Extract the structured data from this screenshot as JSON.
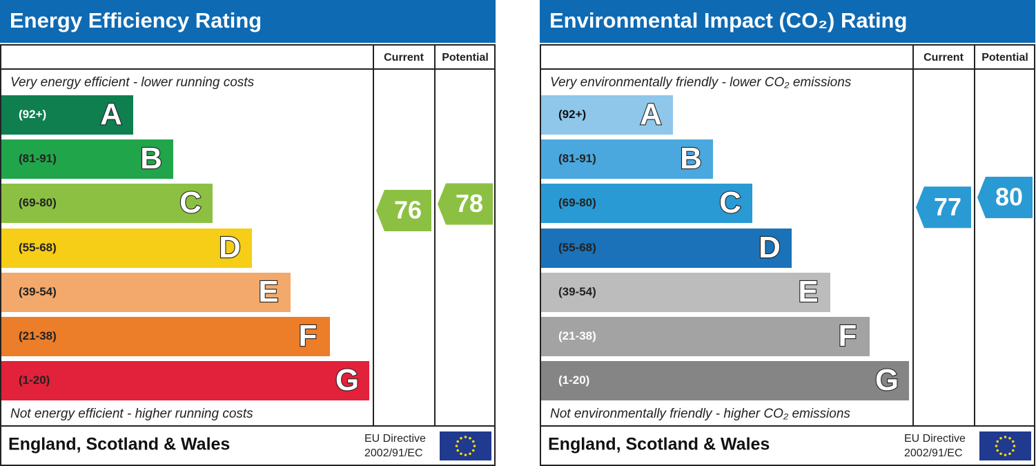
{
  "panels": [
    {
      "title": "Energy Efficiency Rating",
      "columns": [
        "Current",
        "Potential"
      ],
      "top_text": "Very energy efficient - lower running costs",
      "bottom_text": "Not energy efficient - higher running costs",
      "bands": [
        {
          "range": "(92+)",
          "letter": "A",
          "color": "#0f7f4f",
          "text_color": "#ffffff"
        },
        {
          "range": "(81-91)",
          "letter": "B",
          "color": "#21a54b",
          "text_color": "#222222"
        },
        {
          "range": "(69-80)",
          "letter": "C",
          "color": "#8cc043",
          "text_color": "#222222"
        },
        {
          "range": "(55-68)",
          "letter": "D",
          "color": "#f6cd17",
          "text_color": "#222222"
        },
        {
          "range": "(39-54)",
          "letter": "E",
          "color": "#f2a96b",
          "text_color": "#222222"
        },
        {
          "range": "(21-38)",
          "letter": "F",
          "color": "#ec7d29",
          "text_color": "#222222"
        },
        {
          "range": "(1-20)",
          "letter": "G",
          "color": "#e2213b",
          "text_color": "#222222"
        }
      ],
      "current": 76,
      "potential": 78,
      "footer": "England, Scotland & Wales",
      "directive": [
        "EU Directive",
        "2002/91/EC"
      ]
    },
    {
      "title": "Environmental Impact (CO₂) Rating",
      "columns": [
        "Current",
        "Potential"
      ],
      "top_text": "Very environmentally friendly - lower CO₂ emissions",
      "bottom_text": "Not environmentally friendly - higher CO₂ emissions",
      "bands": [
        {
          "range": "(92+)",
          "letter": "A",
          "color": "#8ec7ea",
          "text_color": "#111111"
        },
        {
          "range": "(81-91)",
          "letter": "B",
          "color": "#4aa8de",
          "text_color": "#222222"
        },
        {
          "range": "(69-80)",
          "letter": "C",
          "color": "#2a9ad4",
          "text_color": "#222222"
        },
        {
          "range": "(55-68)",
          "letter": "D",
          "color": "#1b72b8",
          "text_color": "#222222"
        },
        {
          "range": "(39-54)",
          "letter": "E",
          "color": "#bcbcbc",
          "text_color": "#222222"
        },
        {
          "range": "(21-38)",
          "letter": "F",
          "color": "#a3a3a3",
          "text_color": "#ffffff"
        },
        {
          "range": "(1-20)",
          "letter": "G",
          "color": "#858585",
          "text_color": "#ffffff"
        }
      ],
      "current": 77,
      "potential": 80,
      "footer": "England, Scotland & Wales",
      "directive": [
        "EU Directive",
        "2002/91/EC"
      ]
    }
  ]
}
